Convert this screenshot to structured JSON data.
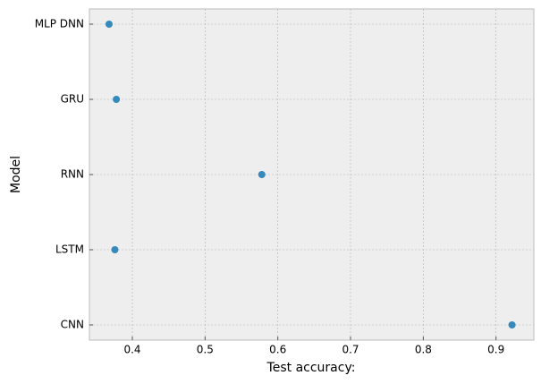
{
  "chart_data": {
    "type": "line",
    "orientation": "horizontal",
    "x_label": "Test accuracy:",
    "y_label": "Model",
    "categories": [
      "MLP DNN",
      "GRU",
      "RNN",
      "LSTM",
      "CNN"
    ],
    "values": [
      0.368,
      0.378,
      0.578,
      0.376,
      0.922
    ],
    "color": "#348abd",
    "xlim": [
      0.341,
      0.952
    ],
    "xticks": [
      0.4,
      0.5,
      0.6,
      0.7,
      0.8,
      0.9
    ],
    "grid": true
  }
}
